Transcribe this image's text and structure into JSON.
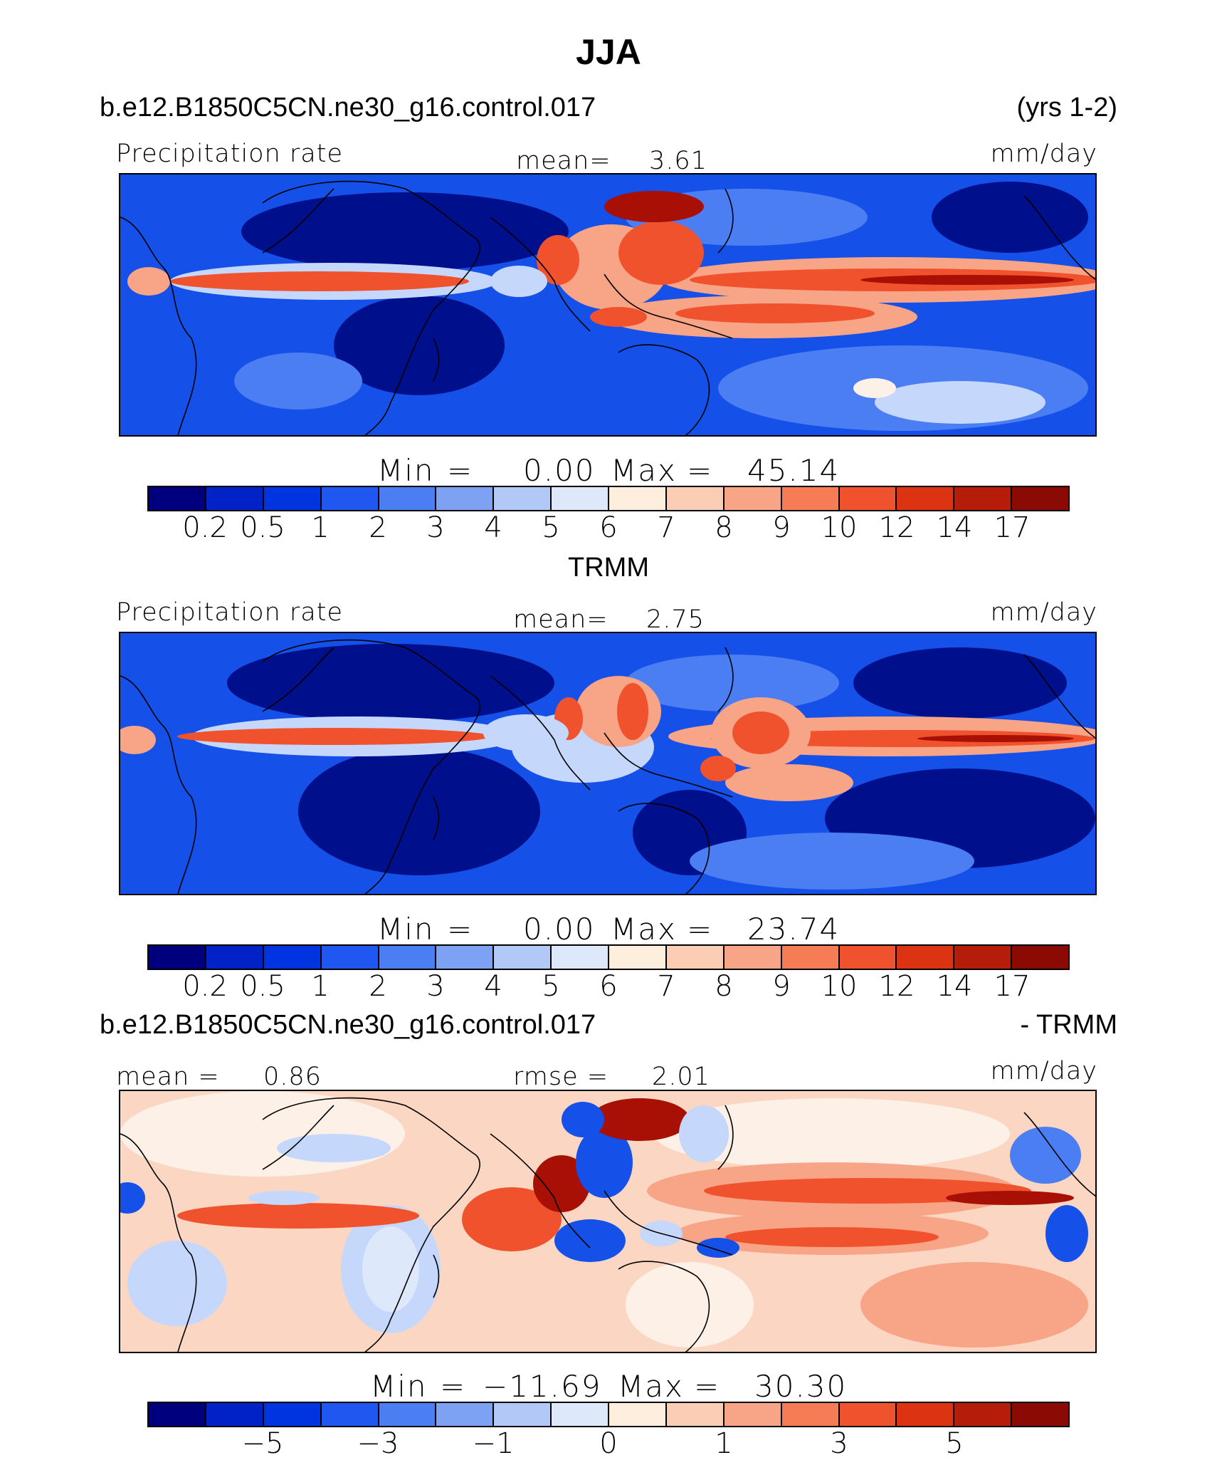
{
  "title": "JJA",
  "panels": [
    {
      "case_label": "b.e12.B1850C5CN.ne30_g16.control.017",
      "right_label": "(yrs 1-2)",
      "field_label": "Precipitation rate",
      "stat_label": "mean=",
      "stat_value": "3.61",
      "units": "mm/day",
      "minmax": {
        "min_label": "Min",
        "eq": "=",
        "min": "0.00",
        "max_label": "Max",
        "max": "45.14"
      },
      "ticks": [
        "0.2",
        "0.5",
        "1",
        "2",
        "3",
        "4",
        "5",
        "6",
        "7",
        "8",
        "9",
        "10",
        "12",
        "14",
        "17"
      ]
    },
    {
      "center_title": "TRMM",
      "field_label": "Precipitation rate",
      "stat_label": "mean=",
      "stat_value": "2.75",
      "units": "mm/day",
      "minmax": {
        "min_label": "Min",
        "eq": "=",
        "min": "0.00",
        "max_label": "Max",
        "max": "23.74"
      },
      "ticks": [
        "0.2",
        "0.5",
        "1",
        "2",
        "3",
        "4",
        "5",
        "6",
        "7",
        "8",
        "9",
        "10",
        "12",
        "14",
        "17"
      ]
    },
    {
      "case_label": "b.e12.B1850C5CN.ne30_g16.control.017",
      "right_label": "- TRMM",
      "mean_label": "mean =",
      "mean_value": "0.86",
      "rmse_label": "rmse =",
      "rmse_value": "2.01",
      "units": "mm/day",
      "minmax": {
        "min_label": "Min",
        "eq": "=",
        "min": "−11.69",
        "max_label": "Max",
        "max": "30.30"
      },
      "ticks": [
        "−5",
        "−3",
        "−1",
        "0",
        "1",
        "3",
        "5"
      ]
    }
  ],
  "colorbar_colors": [
    "#00007f",
    "#0022c6",
    "#0034e0",
    "#1f57f0",
    "#4a7ef2",
    "#7da2f4",
    "#b2c8f7",
    "#dde8fb",
    "#fdeede",
    "#fbcdb5",
    "#f8a486",
    "#f57c55",
    "#ef522d",
    "#dc3413",
    "#b51d0a",
    "#8b0a03"
  ],
  "map_colors": {
    "background": "#1550e8",
    "deep": "#000f8c",
    "mid": "#4a7ef2",
    "light": "#c5d8fb",
    "neutral": "#fdf0e6",
    "warm": "#f8a486",
    "hot": "#ef522d",
    "extreme": "#a80f05"
  }
}
